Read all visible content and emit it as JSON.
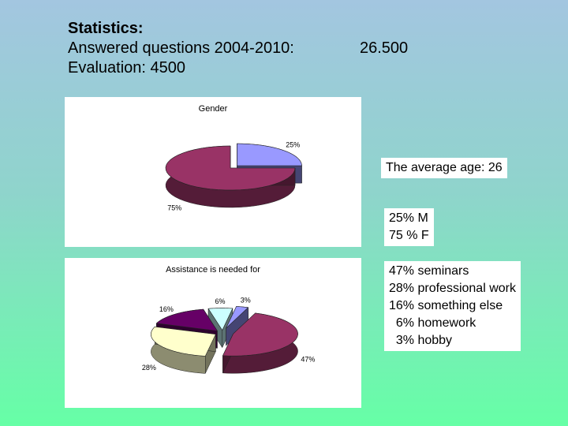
{
  "header": {
    "title": "Statistics:",
    "answered_label": "Answered questions 2004-2010:",
    "answered_value": "26.500",
    "evaluation": "Evaluation: 4500"
  },
  "chart_data": [
    {
      "type": "pie",
      "title": "Gender",
      "categories": [
        "M",
        "F"
      ],
      "values": [
        25,
        75
      ],
      "labels": [
        "25%",
        "75%"
      ],
      "colors": [
        "#9999ff",
        "#993366"
      ]
    },
    {
      "type": "pie",
      "title": "Assistance is needed for",
      "categories": [
        "seminars",
        "professional work",
        "something else",
        "homework",
        "hobby"
      ],
      "values": [
        47,
        28,
        16,
        6,
        3
      ],
      "labels": [
        "47%",
        "28%",
        "16%",
        "6%",
        "3%"
      ],
      "colors": [
        "#993366",
        "#ffffcc",
        "#660066",
        "#ccffff",
        "#9999ff"
      ]
    }
  ],
  "side": {
    "average_age": "The average age: 26",
    "gender_lines": [
      "25% M",
      "75 % F"
    ],
    "assistance_lines": [
      "47% seminars",
      "28% professional work",
      "16% something else",
      "  6% homework",
      "  3% hobby"
    ]
  }
}
